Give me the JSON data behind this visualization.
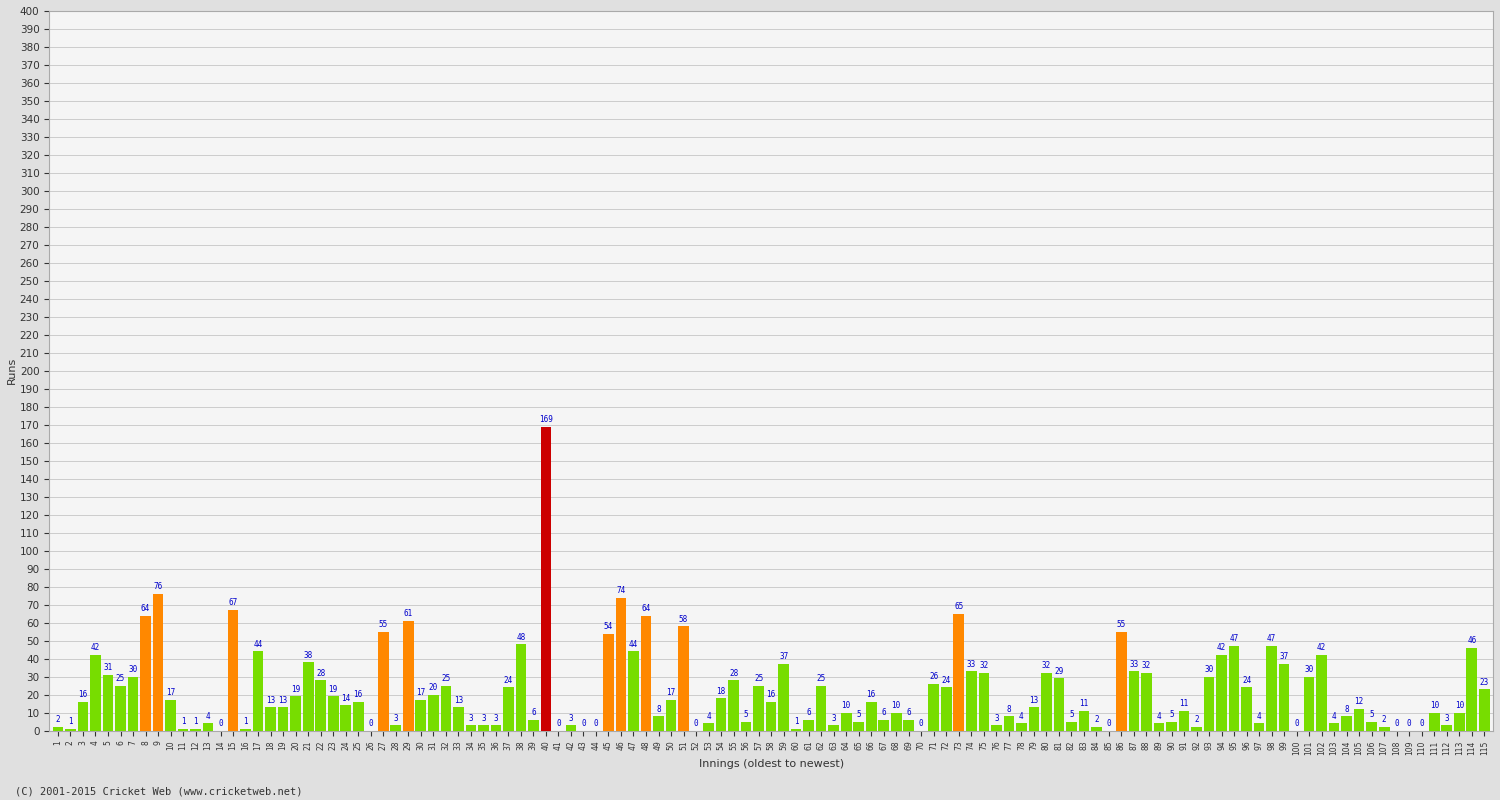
{
  "xlabel": "Innings (oldest to newest)",
  "ylabel": "Runs",
  "background_color": "#e8e8e8",
  "plot_bg_color": "#f8f8f8",
  "grid_color": "#cccccc",
  "ylim": [
    0,
    400
  ],
  "bar_colors": {
    "green": "#77dd00",
    "orange": "#ff8800",
    "red": "#cc0000"
  },
  "innings": [
    {
      "inn": 1,
      "val": 2,
      "color": "green"
    },
    {
      "inn": 2,
      "val": 1,
      "color": "green"
    },
    {
      "inn": 3,
      "val": 16,
      "color": "green"
    },
    {
      "inn": 4,
      "val": 42,
      "color": "green"
    },
    {
      "inn": 5,
      "val": 31,
      "color": "green"
    },
    {
      "inn": 6,
      "val": 25,
      "color": "green"
    },
    {
      "inn": 7,
      "val": 30,
      "color": "green"
    },
    {
      "inn": 8,
      "val": 64,
      "color": "orange"
    },
    {
      "inn": 9,
      "val": 76,
      "color": "orange"
    },
    {
      "inn": 10,
      "val": 17,
      "color": "green"
    },
    {
      "inn": 11,
      "val": 1,
      "color": "green"
    },
    {
      "inn": 12,
      "val": 1,
      "color": "green"
    },
    {
      "inn": 13,
      "val": 4,
      "color": "green"
    },
    {
      "inn": 14,
      "val": 0,
      "color": "green"
    },
    {
      "inn": 15,
      "val": 67,
      "color": "orange"
    },
    {
      "inn": 16,
      "val": 1,
      "color": "green"
    },
    {
      "inn": 17,
      "val": 44,
      "color": "green"
    },
    {
      "inn": 18,
      "val": 13,
      "color": "green"
    },
    {
      "inn": 19,
      "val": 13,
      "color": "green"
    },
    {
      "inn": 20,
      "val": 19,
      "color": "green"
    },
    {
      "inn": 21,
      "val": 38,
      "color": "green"
    },
    {
      "inn": 22,
      "val": 28,
      "color": "green"
    },
    {
      "inn": 23,
      "val": 19,
      "color": "green"
    },
    {
      "inn": 24,
      "val": 14,
      "color": "green"
    },
    {
      "inn": 25,
      "val": 16,
      "color": "green"
    },
    {
      "inn": 26,
      "val": 0,
      "color": "green"
    },
    {
      "inn": 27,
      "val": 55,
      "color": "orange"
    },
    {
      "inn": 28,
      "val": 3,
      "color": "green"
    },
    {
      "inn": 29,
      "val": 61,
      "color": "orange"
    },
    {
      "inn": 30,
      "val": 17,
      "color": "green"
    },
    {
      "inn": 31,
      "val": 20,
      "color": "green"
    },
    {
      "inn": 32,
      "val": 25,
      "color": "green"
    },
    {
      "inn": 33,
      "val": 13,
      "color": "green"
    },
    {
      "inn": 34,
      "val": 3,
      "color": "green"
    },
    {
      "inn": 35,
      "val": 3,
      "color": "green"
    },
    {
      "inn": 36,
      "val": 3,
      "color": "green"
    },
    {
      "inn": 37,
      "val": 24,
      "color": "green"
    },
    {
      "inn": 38,
      "val": 48,
      "color": "green"
    },
    {
      "inn": 39,
      "val": 6,
      "color": "green"
    },
    {
      "inn": 40,
      "val": 169,
      "color": "red"
    },
    {
      "inn": 41,
      "val": 0,
      "color": "green"
    },
    {
      "inn": 42,
      "val": 3,
      "color": "green"
    },
    {
      "inn": 43,
      "val": 0,
      "color": "green"
    },
    {
      "inn": 44,
      "val": 0,
      "color": "green"
    },
    {
      "inn": 45,
      "val": 54,
      "color": "orange"
    },
    {
      "inn": 46,
      "val": 74,
      "color": "orange"
    },
    {
      "inn": 47,
      "val": 44,
      "color": "green"
    },
    {
      "inn": 48,
      "val": 64,
      "color": "orange"
    },
    {
      "inn": 49,
      "val": 8,
      "color": "green"
    },
    {
      "inn": 50,
      "val": 17,
      "color": "green"
    },
    {
      "inn": 51,
      "val": 58,
      "color": "orange"
    },
    {
      "inn": 52,
      "val": 0,
      "color": "green"
    },
    {
      "inn": 53,
      "val": 4,
      "color": "green"
    },
    {
      "inn": 54,
      "val": 18,
      "color": "green"
    },
    {
      "inn": 55,
      "val": 28,
      "color": "green"
    },
    {
      "inn": 56,
      "val": 5,
      "color": "green"
    },
    {
      "inn": 57,
      "val": 25,
      "color": "green"
    },
    {
      "inn": 58,
      "val": 16,
      "color": "green"
    },
    {
      "inn": 59,
      "val": 37,
      "color": "green"
    },
    {
      "inn": 60,
      "val": 1,
      "color": "green"
    },
    {
      "inn": 61,
      "val": 6,
      "color": "green"
    },
    {
      "inn": 62,
      "val": 25,
      "color": "green"
    },
    {
      "inn": 63,
      "val": 3,
      "color": "green"
    },
    {
      "inn": 64,
      "val": 10,
      "color": "green"
    },
    {
      "inn": 65,
      "val": 5,
      "color": "green"
    },
    {
      "inn": 66,
      "val": 16,
      "color": "green"
    },
    {
      "inn": 67,
      "val": 6,
      "color": "green"
    },
    {
      "inn": 68,
      "val": 10,
      "color": "green"
    },
    {
      "inn": 69,
      "val": 6,
      "color": "green"
    },
    {
      "inn": 70,
      "val": 0,
      "color": "green"
    },
    {
      "inn": 71,
      "val": 26,
      "color": "green"
    },
    {
      "inn": 72,
      "val": 24,
      "color": "green"
    },
    {
      "inn": 73,
      "val": 65,
      "color": "orange"
    },
    {
      "inn": 74,
      "val": 33,
      "color": "green"
    },
    {
      "inn": 75,
      "val": 32,
      "color": "green"
    },
    {
      "inn": 76,
      "val": 3,
      "color": "green"
    },
    {
      "inn": 77,
      "val": 8,
      "color": "green"
    },
    {
      "inn": 78,
      "val": 4,
      "color": "green"
    },
    {
      "inn": 79,
      "val": 13,
      "color": "green"
    },
    {
      "inn": 80,
      "val": 32,
      "color": "green"
    },
    {
      "inn": 81,
      "val": 29,
      "color": "green"
    },
    {
      "inn": 82,
      "val": 5,
      "color": "green"
    },
    {
      "inn": 83,
      "val": 11,
      "color": "green"
    },
    {
      "inn": 84,
      "val": 2,
      "color": "green"
    },
    {
      "inn": 85,
      "val": 0,
      "color": "green"
    },
    {
      "inn": 86,
      "val": 55,
      "color": "orange"
    },
    {
      "inn": 87,
      "val": 33,
      "color": "green"
    },
    {
      "inn": 88,
      "val": 32,
      "color": "green"
    },
    {
      "inn": 89,
      "val": 4,
      "color": "green"
    },
    {
      "inn": 90,
      "val": 5,
      "color": "green"
    },
    {
      "inn": 91,
      "val": 11,
      "color": "green"
    },
    {
      "inn": 92,
      "val": 2,
      "color": "green"
    },
    {
      "inn": 93,
      "val": 30,
      "color": "green"
    },
    {
      "inn": 94,
      "val": 42,
      "color": "green"
    },
    {
      "inn": 95,
      "val": 47,
      "color": "green"
    },
    {
      "inn": 96,
      "val": 24,
      "color": "green"
    },
    {
      "inn": 97,
      "val": 4,
      "color": "green"
    },
    {
      "inn": 98,
      "val": 47,
      "color": "green"
    },
    {
      "inn": 99,
      "val": 37,
      "color": "green"
    },
    {
      "inn": 100,
      "val": 0,
      "color": "green"
    },
    {
      "inn": 101,
      "val": 30,
      "color": "green"
    },
    {
      "inn": 102,
      "val": 42,
      "color": "green"
    },
    {
      "inn": 103,
      "val": 4,
      "color": "green"
    },
    {
      "inn": 104,
      "val": 8,
      "color": "green"
    },
    {
      "inn": 105,
      "val": 12,
      "color": "green"
    },
    {
      "inn": 106,
      "val": 5,
      "color": "green"
    },
    {
      "inn": 107,
      "val": 2,
      "color": "green"
    },
    {
      "inn": 108,
      "val": 0,
      "color": "green"
    },
    {
      "inn": 109,
      "val": 0,
      "color": "green"
    },
    {
      "inn": 110,
      "val": 0,
      "color": "green"
    },
    {
      "inn": 111,
      "val": 10,
      "color": "green"
    },
    {
      "inn": 112,
      "val": 3,
      "color": "green"
    },
    {
      "inn": 113,
      "val": 10,
      "color": "green"
    },
    {
      "inn": 114,
      "val": 46,
      "color": "green"
    },
    {
      "inn": 115,
      "val": 23,
      "color": "green"
    }
  ],
  "footer": "(C) 2001-2015 Cricket Web (www.cricketweb.net)"
}
